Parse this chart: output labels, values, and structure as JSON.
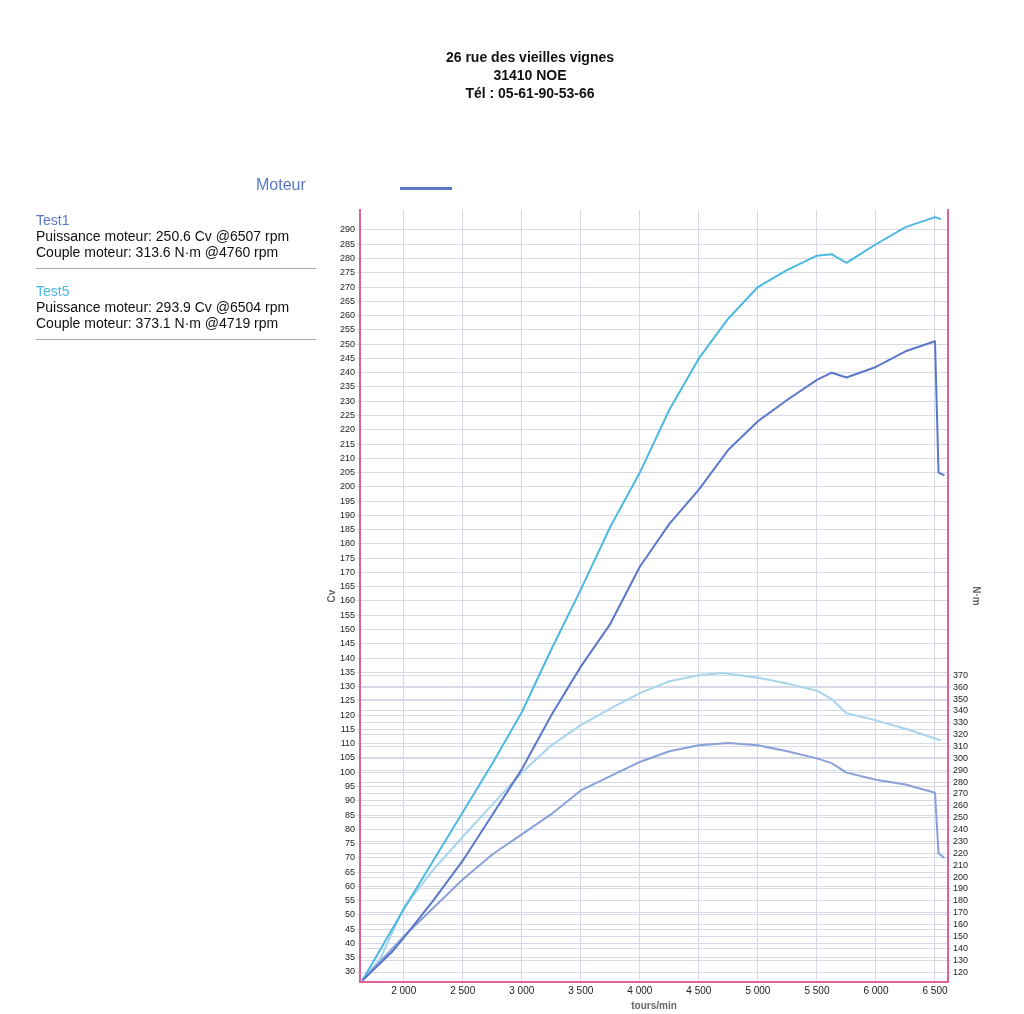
{
  "chart_data": {
    "type": "line",
    "title": "Moteur",
    "subtitle": "26 rue des vieilles vignes\n31410 NOE\nTél : 05-61-90-53-66",
    "xlabel": "tours/min",
    "ylabel": "Cv",
    "y2label": "N·m",
    "annotations": [
      "Puissance moteur: 250.6 Cv @6507 rpm",
      "Couple moteur: 313.6 N·m @4760 rpm",
      "Puissance moteur: 293.9 Cv @6504 rpm",
      "Couple moteur: 373.1 N·m @4719 rpm"
    ],
    "xlim": [
      1630,
      6610
    ],
    "xticks": [
      {
        "value": 2000,
        "label": "2 000"
      },
      {
        "value": 2500,
        "label": "2 500"
      },
      {
        "value": 3000,
        "label": "3 000"
      },
      {
        "value": 3500,
        "label": "3 500"
      },
      {
        "value": 4000,
        "label": "4 000"
      },
      {
        "value": 4500,
        "label": "4 500"
      },
      {
        "value": 5000,
        "label": "5 000"
      },
      {
        "value": 5500,
        "label": "5 500"
      },
      {
        "value": 6000,
        "label": "6 000"
      },
      {
        "value": 6500,
        "label": "6 500"
      }
    ],
    "ylim": [
      26.5,
      297
    ],
    "yticks": [
      30,
      35,
      40,
      45,
      50,
      55,
      60,
      65,
      70,
      75,
      80,
      85,
      90,
      95,
      100,
      105,
      110,
      115,
      120,
      125,
      130,
      135,
      140,
      145,
      150,
      155,
      160,
      165,
      170,
      175,
      180,
      185,
      190,
      195,
      200,
      205,
      210,
      215,
      220,
      225,
      230,
      235,
      240,
      245,
      250,
      255,
      260,
      265,
      270,
      275,
      280,
      285,
      290
    ],
    "y2lim": [
      111.6,
      762
    ],
    "y2ticks": [
      120,
      130,
      140,
      150,
      160,
      170,
      180,
      190,
      200,
      210,
      220,
      230,
      240,
      250,
      260,
      270,
      280,
      290,
      300,
      310,
      320,
      330,
      340,
      350,
      360,
      370
    ],
    "grid": true,
    "legend": false,
    "marker": "none",
    "line_style": "solid",
    "series": [
      {
        "name": "Test1",
        "color": "#5b78c8",
        "x": [
          1650,
          1900,
          2000,
          2250,
          2500,
          2750,
          3000,
          3250,
          3500,
          3750,
          4000,
          4250,
          4500,
          4750,
          5000,
          5250,
          5500,
          5625,
          5750,
          6000,
          6250,
          6500,
          6530,
          6580
        ],
        "values": [
          27,
          37,
          42,
          55,
          69,
          85,
          101,
          120,
          137,
          152,
          172,
          187,
          199,
          213,
          223,
          230.5,
          237.5,
          240,
          238.3,
          242,
          247.5,
          251,
          205,
          204
        ]
      },
      {
        "name": "Test5",
        "color": "#4db8e0",
        "x": [
          1650,
          2000,
          2250,
          2500,
          2750,
          3000,
          3250,
          3500,
          3750,
          4000,
          4250,
          4500,
          4750,
          5000,
          5250,
          5500,
          5625,
          5750,
          6000,
          6250,
          6500,
          6550
        ],
        "values": [
          27,
          52,
          69,
          86,
          103,
          121,
          143,
          164,
          186,
          205,
          227,
          245,
          259,
          270,
          276,
          281,
          281.5,
          278.5,
          285,
          291,
          294.5,
          293.8
        ]
      },
      {
        "color": "#8aa0d8",
        "axis": "y2",
        "x": [
          1650,
          2000,
          2250,
          2500,
          2750,
          3000,
          3250,
          3500,
          3750,
          4000,
          4250,
          4500,
          4750,
          5000,
          5250,
          5500,
          5625,
          5750,
          6000,
          6250,
          6500,
          6530,
          6580
        ],
        "values": [
          113,
          150,
          174,
          198,
          219,
          236,
          253,
          273,
          285,
          297,
          306,
          311,
          313,
          311,
          306,
          300,
          296,
          288,
          282,
          278,
          271,
          220,
          216
        ]
      },
      {
        "color": "#a8d4ec",
        "axis": "y2",
        "x": [
          1650,
          1800,
          2000,
          2250,
          2500,
          2750,
          3000,
          3250,
          3500,
          3750,
          4000,
          4250,
          4500,
          4700,
          5000,
          5250,
          5500,
          5625,
          5750,
          6000,
          6250,
          6550
        ],
        "values": [
          113,
          131,
          174,
          206,
          234,
          261,
          288,
          311,
          328,
          342,
          355,
          365,
          370,
          372,
          368,
          363,
          357,
          350,
          338,
          332,
          325,
          315
        ]
      }
    ]
  }
}
